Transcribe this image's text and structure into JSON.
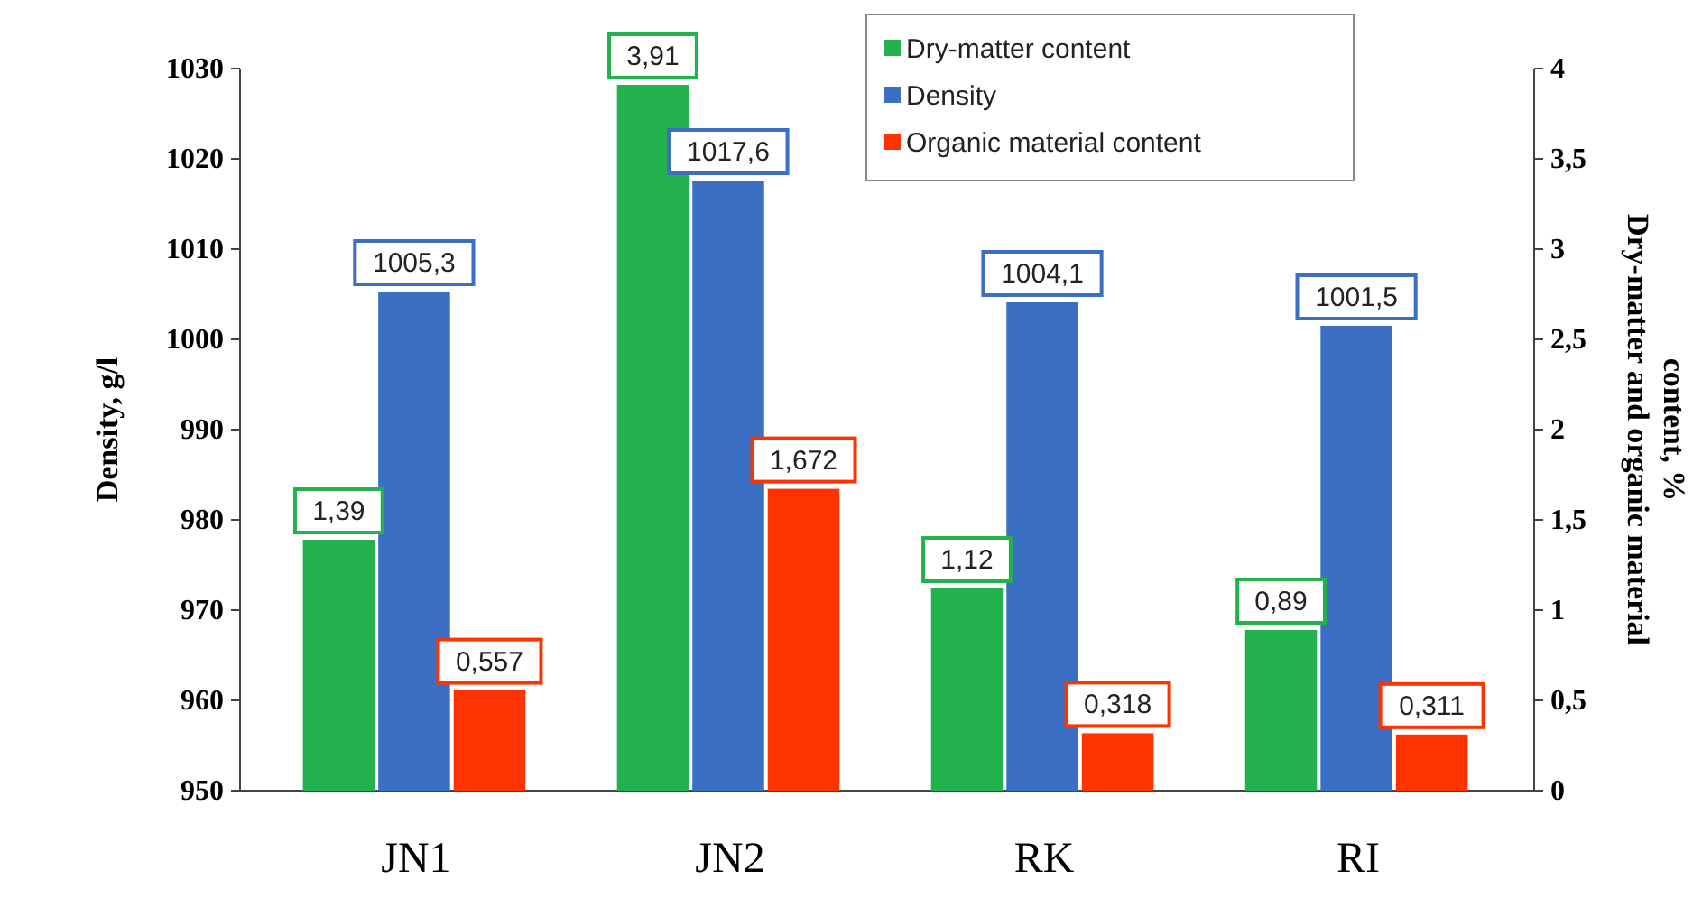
{
  "chart_data": {
    "type": "bar",
    "categories": [
      "JN1",
      "JN2",
      "RK",
      "RI"
    ],
    "ylabel": "Density, g/l",
    "y2label": "Dry-matter and organic material content, %",
    "ylim": [
      950,
      1030
    ],
    "yticks": [
      950,
      960,
      970,
      980,
      990,
      1000,
      1010,
      1020,
      1030
    ],
    "y2lim": [
      0,
      4
    ],
    "y2ticks": [
      0,
      {
        "value": 0.5,
        "label": "0,5"
      },
      1,
      {
        "value": 1.5,
        "label": "1,5"
      },
      2,
      {
        "value": 2.5,
        "label": "2,5"
      },
      3,
      {
        "value": 3.5,
        "label": "3,5"
      },
      4
    ],
    "legend": "top right",
    "series": [
      {
        "name": "Dry-matter content",
        "color": "#22b14c",
        "axis": "y2",
        "values": [
          1.39,
          3.91,
          1.12,
          0.89
        ],
        "value_labels": [
          "1,39",
          "3,91",
          "1,12",
          "0,89"
        ]
      },
      {
        "name": "Density",
        "color": "#3a6fc4",
        "values": [
          1005.3,
          1017.6,
          1004.1,
          1001.5
        ],
        "value_labels": [
          "1005,3",
          "1017,6",
          "1004,1",
          "1001,5"
        ]
      },
      {
        "name": "Organic material content",
        "color": "#ff3300",
        "axis": "y2",
        "values": [
          0.557,
          1.672,
          0.318,
          0.311
        ],
        "value_labels": [
          "0,557",
          "1,672",
          "0,318",
          "0,311"
        ]
      }
    ]
  }
}
